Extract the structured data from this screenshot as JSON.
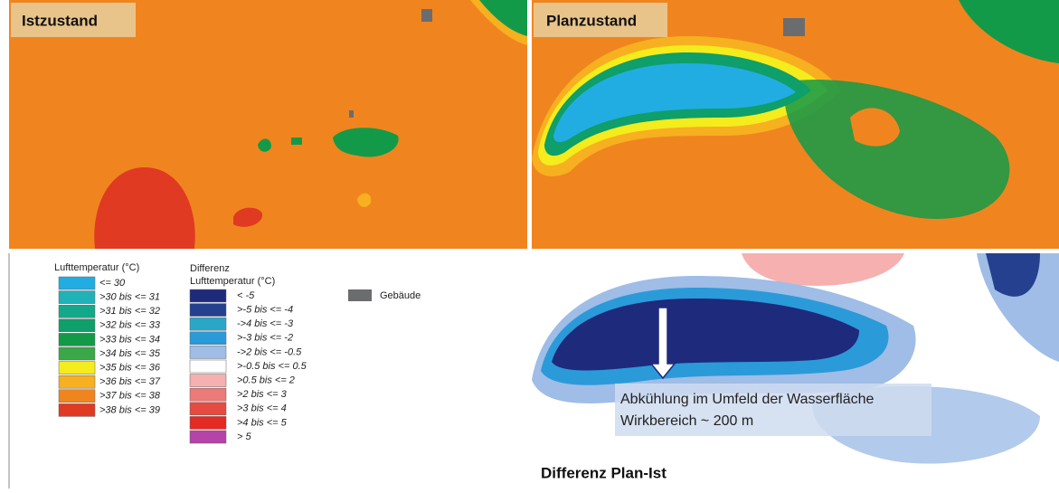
{
  "panels": {
    "ist": {
      "title": "Istzustand"
    },
    "plan": {
      "title": "Planzustand"
    },
    "diff": {
      "title": "Differenz Plan-Ist",
      "annotation": [
        "Abkühlung im Umfeld der Wasserfläche",
        "Wirkbereich ~ 200 m"
      ]
    }
  },
  "legend_temp": {
    "title": "Lufttemperatur (°C)",
    "items": [
      {
        "label": "<= 30",
        "color": "#22ade2"
      },
      {
        "label": ">30 bis <= 31",
        "color": "#1fb2b8"
      },
      {
        "label": ">31 bis <= 32",
        "color": "#13a88a"
      },
      {
        "label": ">32 bis <= 33",
        "color": "#0e9f6a"
      },
      {
        "label": ">33 bis <= 34",
        "color": "#139a48"
      },
      {
        "label": ">34 bis <= 35",
        "color": "#3aa848"
      },
      {
        "label": ">35 bis <= 36",
        "color": "#f4ec1c"
      },
      {
        "label": ">36 bis <= 37",
        "color": "#f7b020"
      },
      {
        "label": ">37 bis <= 38",
        "color": "#f0851f"
      },
      {
        "label": ">38 bis <= 39",
        "color": "#e03a22"
      }
    ]
  },
  "legend_diff": {
    "title": [
      "Differenz",
      "Lufttemperatur (°C)"
    ],
    "items": [
      {
        "label": "< -5",
        "color": "#1e2a7c"
      },
      {
        "label": ">-5 bis <= -4",
        "color": "#24408f"
      },
      {
        "label": "->4 bis <= -3",
        "color": "#2aa7c7"
      },
      {
        "label": ">-3 bis <= -2",
        "color": "#2b9ad9"
      },
      {
        "label": "->2 bis <= -0.5",
        "color": "#9fbde6"
      },
      {
        "label": ">-0.5 bis <= 0.5",
        "color": "#ffffff"
      },
      {
        "label": ">0.5 bis <= 2",
        "color": "#f6b0b0"
      },
      {
        "label": ">2 bis <= 3",
        "color": "#ec7a78"
      },
      {
        "label": ">3 bis <= 4",
        "color": "#e64a40"
      },
      {
        "label": ">4 bis <= 5",
        "color": "#e42a22"
      },
      {
        "label": "> 5",
        "color": "#b543a8"
      }
    ]
  },
  "legend_building": {
    "label": "Gebäude",
    "color": "#6b6c6e"
  }
}
